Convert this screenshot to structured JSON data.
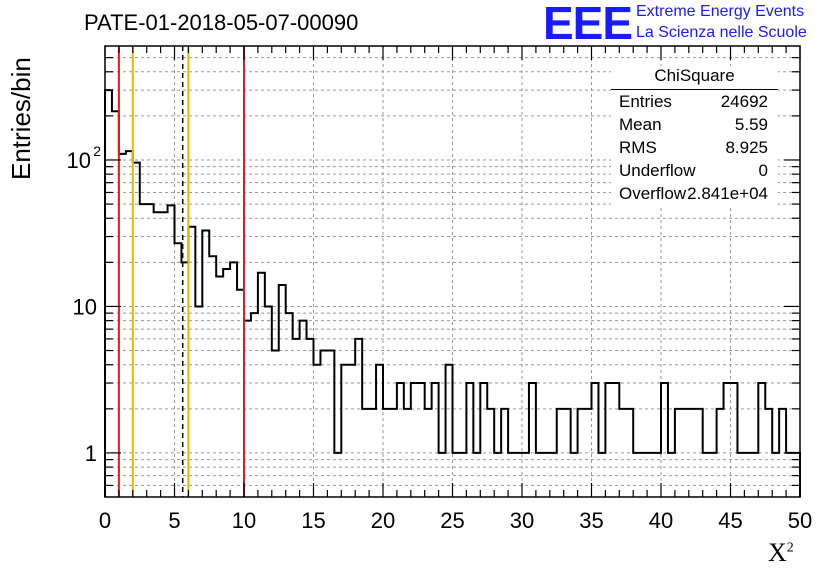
{
  "title": "PATE-01-2018-05-07-00090",
  "logo": {
    "mark": "EEE",
    "line1": "Extreme Energy Events",
    "line2": "La Scienza nelle Scuole"
  },
  "stats": {
    "name": "ChiSquare",
    "rows": [
      {
        "key": "Entries",
        "value": "24692"
      },
      {
        "key": "Mean",
        "value": "5.59"
      },
      {
        "key": "RMS",
        "value": "8.925"
      },
      {
        "key": "Underflow",
        "value": "0"
      },
      {
        "key": "Overflow",
        "value": "2.841e+04"
      }
    ]
  },
  "colors": {
    "red_line": "#e8181e",
    "yellow_line": "#f0b400",
    "hist": "#000000",
    "logo": "#1a1aff"
  },
  "chart_data": {
    "type": "histogram",
    "title": "PATE-01-2018-05-07-00090",
    "xlabel": "X",
    "xlabel_superscript": "2",
    "ylabel": "Entries/bin",
    "xlim": [
      0,
      50
    ],
    "ylim": [
      0.5,
      600
    ],
    "yscale": "log",
    "grid": true,
    "bin_width": 0.5,
    "x_ticks": [
      "0",
      "5",
      "10",
      "15",
      "20",
      "25",
      "30",
      "35",
      "40",
      "45",
      "50"
    ],
    "y_ticks": [
      {
        "value": 1,
        "label": "1"
      },
      {
        "value": 10,
        "label": "10"
      },
      {
        "value": 100,
        "label": "10",
        "sup": "2"
      }
    ],
    "counts": [
      300,
      215,
      110,
      115,
      96,
      50,
      50,
      44,
      44,
      49,
      27,
      20,
      35,
      10,
      33,
      22,
      16,
      18,
      20,
      13,
      8,
      9,
      17,
      10,
      5,
      14,
      9,
      6,
      8,
      6,
      4,
      5,
      5,
      1,
      4,
      4,
      6,
      2,
      2,
      4,
      2,
      2,
      3,
      2,
      3,
      3,
      2,
      3,
      1,
      4,
      1,
      1,
      3,
      1,
      3,
      2,
      1,
      2,
      1,
      1,
      1,
      3,
      1,
      1,
      1,
      2,
      2,
      1,
      2,
      2,
      3,
      1,
      3,
      3,
      2,
      2,
      1,
      1,
      1,
      1,
      3,
      1,
      2,
      2,
      2,
      2,
      1,
      1,
      2,
      3,
      3,
      1,
      1,
      1,
      3,
      2,
      1,
      2,
      1,
      1
    ],
    "vertical_lines": [
      {
        "x": 1,
        "style": "red"
      },
      {
        "x": 2,
        "style": "yellow"
      },
      {
        "x": 5.59,
        "style": "dashed"
      },
      {
        "x": 6,
        "style": "yellow"
      },
      {
        "x": 10,
        "style": "red"
      }
    ]
  }
}
